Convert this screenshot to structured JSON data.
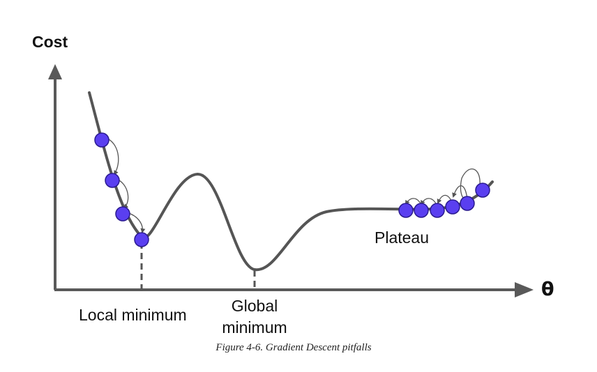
{
  "figure": {
    "y_axis_label": "Cost",
    "x_axis_label": "θ",
    "local_minimum_label": "Local minimum",
    "global_minimum_label": "Global minimum",
    "plateau_label": "Plateau",
    "caption": "Figure 4-6. Gradient Descent pitfalls"
  },
  "colors": {
    "curve": "#555555",
    "axis": "#595959",
    "ball_fill": "#5a3ff0",
    "ball_stroke": "#2a1a8f",
    "arrow": "#555555",
    "dash": "#555555"
  },
  "icons": {
    "ball": "circle",
    "arrowhead": "triangle"
  }
}
